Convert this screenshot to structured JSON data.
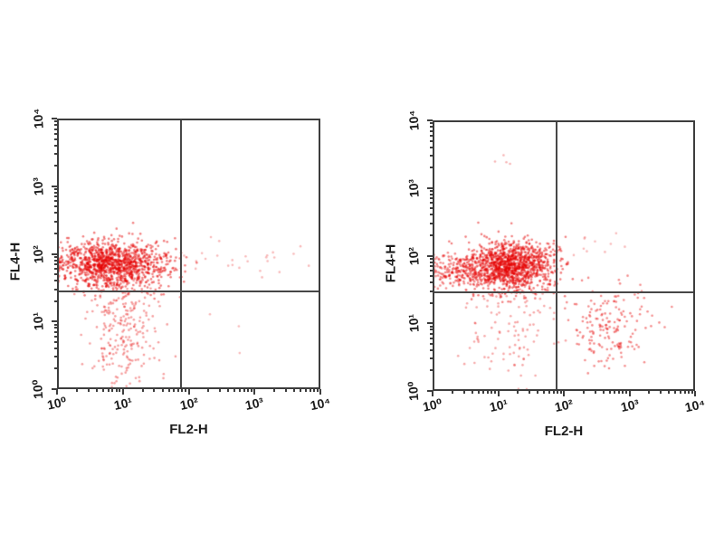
{
  "figure": {
    "background": "#ffffff",
    "text_color": "#1c1c1c",
    "frame_color": "#3d3d3d",
    "gate_line_color": "#474747"
  },
  "chart_data": [
    {
      "type": "scatter",
      "name": "left-dot-plot",
      "xlabel": "FL2-H",
      "ylabel": "FL4-H",
      "x_scale": "log",
      "y_scale": "log",
      "xlim": [
        1,
        10000
      ],
      "ylim": [
        1,
        10000
      ],
      "x_ticks": [
        "10⁰",
        "10¹",
        "10²",
        "10³",
        "10⁴"
      ],
      "y_ticks": [
        "10⁰",
        "10¹",
        "10²",
        "10³",
        "10⁴"
      ],
      "grid": false,
      "legend": false,
      "dot_color": "#e60000",
      "quadrant_gate": {
        "x": 76,
        "y": 28
      },
      "clusters": [
        {
          "name": "fl4-positive-main",
          "cx": 0.85,
          "cy": 1.85,
          "sx": 0.42,
          "sy": 0.17,
          "n": 1250,
          "alpha": 0.5
        },
        {
          "name": "lower-left-tail",
          "cx": 1.0,
          "cy": 0.85,
          "sx": 0.27,
          "sy": 0.4,
          "n": 240,
          "alpha": 0.38
        },
        {
          "name": "upper-right-sparse",
          "cx": 2.8,
          "cy": 1.9,
          "sx": 0.5,
          "sy": 0.17,
          "n": 26,
          "alpha": 0.28
        },
        {
          "name": "lower-right-sparse",
          "cx": 2.4,
          "cy": 0.9,
          "sx": 0.35,
          "sy": 0.3,
          "n": 3,
          "alpha": 0.28
        }
      ]
    },
    {
      "type": "scatter",
      "name": "right-dot-plot",
      "xlabel": "FL2-H",
      "ylabel": "FL4-H",
      "x_scale": "log",
      "y_scale": "log",
      "xlim": [
        1,
        10000
      ],
      "ylim": [
        1,
        10000
      ],
      "x_ticks": [
        "10⁰",
        "10¹",
        "10²",
        "10³",
        "10⁴"
      ],
      "y_ticks": [
        "10⁰",
        "10¹",
        "10²",
        "10³",
        "10⁴"
      ],
      "grid": false,
      "legend": false,
      "dot_color": "#e60000",
      "quadrant_gate": {
        "x": 77,
        "y": 29
      },
      "clusters": [
        {
          "name": "fl4-positive-main",
          "cx": 1.18,
          "cy": 1.85,
          "sx": 0.33,
          "sy": 0.18,
          "n": 1250,
          "alpha": 0.5
        },
        {
          "name": "fl4-positive-left-arm",
          "cx": 0.4,
          "cy": 1.78,
          "sx": 0.28,
          "sy": 0.13,
          "n": 200,
          "alpha": 0.45
        },
        {
          "name": "lower-mid-tail",
          "cx": 1.15,
          "cy": 0.9,
          "sx": 0.38,
          "sy": 0.42,
          "n": 115,
          "alpha": 0.35
        },
        {
          "name": "fl2-positive-cluster",
          "cx": 2.73,
          "cy": 0.95,
          "sx": 0.28,
          "sy": 0.3,
          "n": 170,
          "alpha": 0.45
        },
        {
          "name": "upper-right-sparse",
          "cx": 2.6,
          "cy": 2.05,
          "sx": 0.28,
          "sy": 0.12,
          "n": 10,
          "alpha": 0.28
        },
        {
          "name": "top-outliers",
          "cx": 1.05,
          "cy": 3.4,
          "sx": 0.12,
          "sy": 0.04,
          "n": 4,
          "alpha": 0.3
        }
      ]
    }
  ]
}
